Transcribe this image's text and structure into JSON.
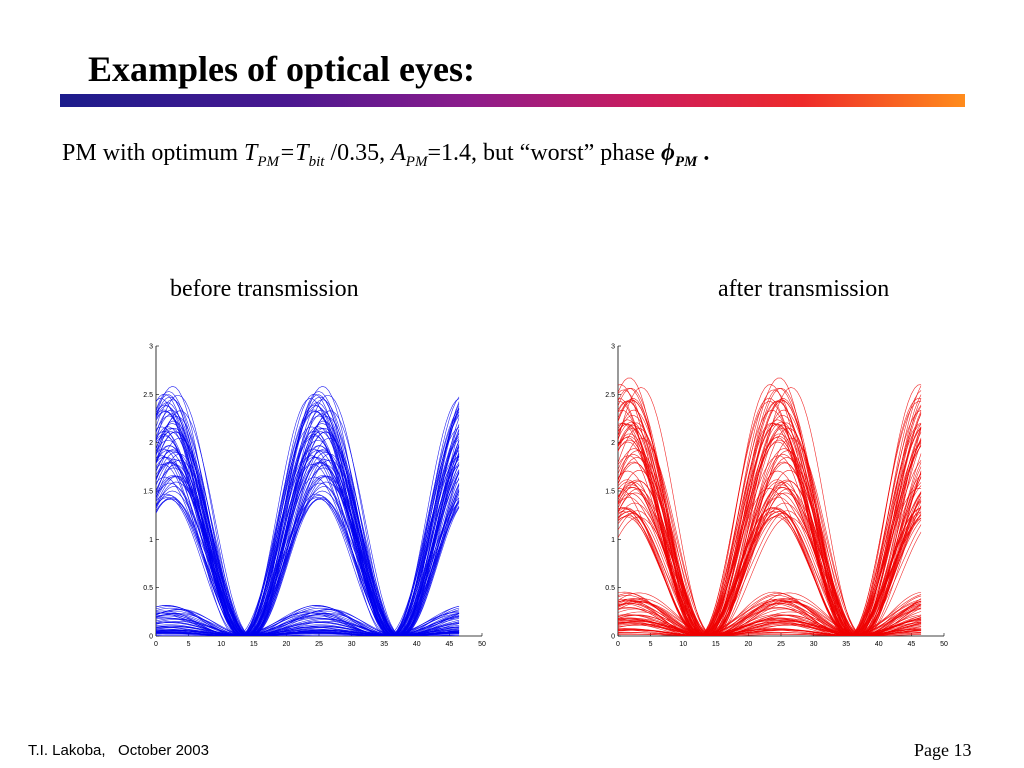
{
  "slide": {
    "title": "Examples of optical eyes:",
    "subtitle": {
      "pm_prefix": "PM  with optimum  ",
      "t": "T",
      "pm_sub": "PM",
      "eq_t": "=T",
      "bit_sub": "bit",
      "ratio": " /0.35,   ",
      "a": "A",
      "pm_sub2": "PM",
      "amp": "=1.4,   but “worst” phase ",
      "phi": "ϕ",
      "phi_sub": "PM",
      "end": " ."
    },
    "footer_left": "T.I. Lakoba,   October 2003",
    "footer_right": "Page 13",
    "accent_colors": {
      "rule_start": "#1c1c8c",
      "rule_end": "#ff8c1c"
    }
  },
  "chart_data": [
    {
      "type": "line",
      "title": "before transmission",
      "xlim": [
        0,
        50
      ],
      "ylim": [
        0,
        3
      ],
      "xticks": [
        0,
        5,
        10,
        15,
        20,
        25,
        30,
        35,
        40,
        45,
        50
      ],
      "yticks": [
        "0",
        "0.5",
        "1",
        "1.5",
        "2",
        "2.5",
        "3"
      ],
      "color": "#0000ee",
      "data_range_x": [
        0,
        46.5
      ],
      "period": 23,
      "eye_crossings": [
        13,
        36
      ],
      "high_traces": {
        "peak_x": [
          2,
          25
        ],
        "peak_y_min": 1.4,
        "peak_y_max": 2.6
      },
      "low_traces": {
        "y_min": 0.0,
        "y_max": 0.33
      },
      "trace_count": 120
    },
    {
      "type": "line",
      "title": "after transmission",
      "xlim": [
        0,
        50
      ],
      "ylim": [
        0,
        3
      ],
      "xticks": [
        0,
        5,
        10,
        15,
        20,
        25,
        30,
        35,
        40,
        45,
        50
      ],
      "yticks": [
        "0",
        "0.5",
        "1",
        "1.5",
        "2",
        "2.5",
        "3"
      ],
      "color": "#ee0000",
      "data_range_x": [
        0,
        46.5
      ],
      "period": 23,
      "eye_crossings": [
        13,
        36
      ],
      "high_traces": {
        "peak_x": [
          2,
          25
        ],
        "peak_y_min": 1.2,
        "peak_y_max": 2.65
      },
      "low_traces": {
        "y_min": 0.0,
        "y_max": 0.45
      },
      "trace_count": 120
    }
  ]
}
